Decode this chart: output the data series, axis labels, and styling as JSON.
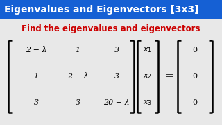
{
  "title": "Eigenvalues and Eigenvectors [3x3]",
  "title_bg": "#1560D4",
  "title_color": "#FFFFFF",
  "subtitle": "Find the eigenvalues and eigenvectors",
  "subtitle_color": "#CC0000",
  "bg_color": "#E8E8E8",
  "matrix_rows": [
    [
      "2 − λ",
      "1",
      "3"
    ],
    [
      "1",
      "2 − λ",
      "3"
    ],
    [
      "3",
      "3",
      "20 − λ"
    ]
  ],
  "vector_x": [
    "x_1",
    "x_2",
    "x_3"
  ],
  "vector_0": [
    "0",
    "0",
    "0"
  ],
  "title_fontsize": 10.0,
  "subtitle_fontsize": 8.5,
  "matrix_fontsize": 8.0
}
